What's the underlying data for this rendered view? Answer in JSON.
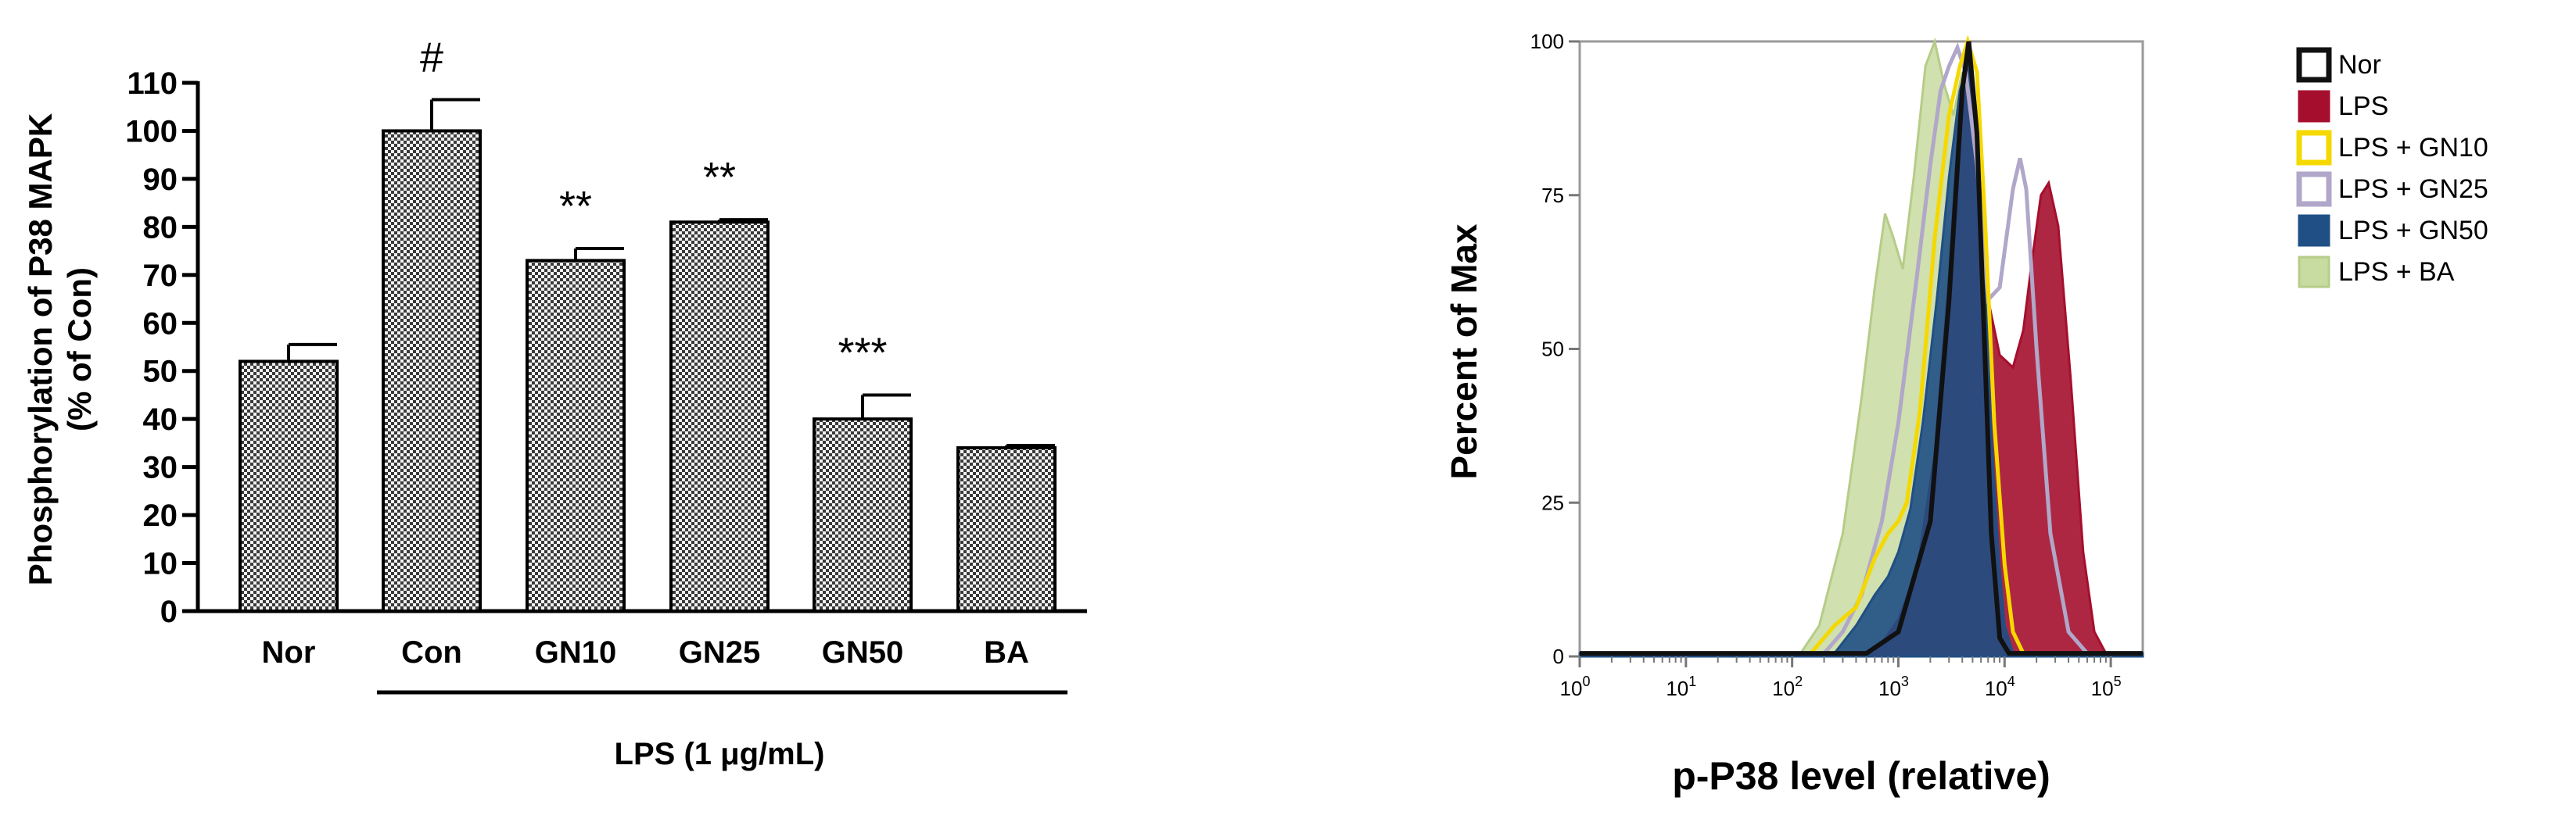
{
  "chart_data": [
    {
      "type": "bar",
      "ylabel": "Phosphorylation of P38 MAPK",
      "ylabel2": "(% of Con)",
      "categories": [
        "Nor",
        "Con",
        "GN10",
        "GN25",
        "GN50",
        "BA"
      ],
      "values": [
        52,
        100,
        73,
        81,
        40,
        34
      ],
      "errors": [
        3.5,
        6.5,
        2.5,
        0.5,
        5,
        0.5
      ],
      "annotations": [
        "",
        "#",
        "**",
        "**",
        "***",
        ""
      ],
      "ylim": [
        0,
        110
      ],
      "yticks": [
        "0",
        "10",
        "20",
        "30",
        "40",
        "50",
        "60",
        "70",
        "80",
        "90",
        "100",
        "110"
      ],
      "group_label": "LPS (1 μg/mL)",
      "bar_fill": "checkered",
      "colors": {
        "bar_light": "#f2f2f2",
        "bar_dark": "#3a3a3a"
      }
    },
    {
      "type": "area",
      "ylabel": "Percent of Max",
      "xlabel": "p-P38 level (relative)",
      "x_scale": "log",
      "xlim": [
        1,
        200000
      ],
      "ylim": [
        0,
        100
      ],
      "yticks": [
        "0",
        "25",
        "50",
        "75",
        "100"
      ],
      "xtick_bases": [
        "10",
        "10",
        "10",
        "10",
        "10",
        "10"
      ],
      "xtick_exps": [
        "0",
        "1",
        "2",
        "3",
        "4",
        "5"
      ],
      "legend_position": "right",
      "series": [
        {
          "name": "Nor",
          "color": "#111111",
          "fill": "none",
          "points": [
            [
              1,
              0.5
            ],
            [
              500,
              0.5
            ],
            [
              1000,
              4
            ],
            [
              2000,
              22
            ],
            [
              3000,
              58
            ],
            [
              4000,
              92
            ],
            [
              4600,
              100
            ],
            [
              5500,
              85
            ],
            [
              6500,
              50
            ],
            [
              7500,
              20
            ],
            [
              9000,
              3
            ],
            [
              11000,
              0.5
            ],
            [
              200000,
              0.5
            ]
          ]
        },
        {
          "name": "LPS",
          "color": "#a50f2d",
          "fill": "#a50f2d",
          "points": [
            [
              1,
              0.5
            ],
            [
              600,
              0.5
            ],
            [
              1000,
              6
            ],
            [
              1500,
              14
            ],
            [
              2200,
              33
            ],
            [
              3000,
              62
            ],
            [
              3800,
              90
            ],
            [
              4500,
              99
            ],
            [
              5500,
              88
            ],
            [
              7000,
              58
            ],
            [
              9000,
              49
            ],
            [
              12000,
              47
            ],
            [
              15000,
              53
            ],
            [
              18000,
              64
            ],
            [
              22000,
              75
            ],
            [
              26000,
              77
            ],
            [
              32000,
              70
            ],
            [
              42000,
              45
            ],
            [
              55000,
              17
            ],
            [
              70000,
              4
            ],
            [
              90000,
              0.5
            ],
            [
              200000,
              0.5
            ]
          ]
        },
        {
          "name": "LPS + GN10",
          "color": "#f5d800",
          "fill": "none",
          "points": [
            [
              1,
              0.5
            ],
            [
              150,
              0.5
            ],
            [
              250,
              5
            ],
            [
              400,
              8
            ],
            [
              600,
              16
            ],
            [
              800,
              20
            ],
            [
              1000,
              22
            ],
            [
              1200,
              25
            ],
            [
              1600,
              40
            ],
            [
              2200,
              68
            ],
            [
              3000,
              88
            ],
            [
              3800,
              96
            ],
            [
              4500,
              100
            ],
            [
              5500,
              95
            ],
            [
              6500,
              72
            ],
            [
              8000,
              38
            ],
            [
              10000,
              15
            ],
            [
              12000,
              4
            ],
            [
              15000,
              0.5
            ],
            [
              200000,
              0.5
            ]
          ]
        },
        {
          "name": "LPS + GN25",
          "color": "#b0a7c9",
          "fill": "none",
          "points": [
            [
              1,
              0.5
            ],
            [
              200,
              0.5
            ],
            [
              300,
              4
            ],
            [
              450,
              10
            ],
            [
              700,
              22
            ],
            [
              1000,
              38
            ],
            [
              1500,
              62
            ],
            [
              2000,
              80
            ],
            [
              2500,
              92
            ],
            [
              3000,
              96
            ],
            [
              3600,
              99
            ],
            [
              4300,
              95
            ],
            [
              5500,
              80
            ],
            [
              7000,
              58
            ],
            [
              9000,
              60
            ],
            [
              12000,
              76
            ],
            [
              14000,
              81
            ],
            [
              16000,
              76
            ],
            [
              20000,
              50
            ],
            [
              27000,
              20
            ],
            [
              40000,
              4
            ],
            [
              60000,
              0.5
            ],
            [
              200000,
              0.5
            ]
          ]
        },
        {
          "name": "LPS + GN50",
          "color": "#1f4f85",
          "fill": "#1f4f85",
          "points": [
            [
              1,
              0.5
            ],
            [
              250,
              0.5
            ],
            [
              400,
              5
            ],
            [
              600,
              10
            ],
            [
              800,
              13
            ],
            [
              1000,
              17
            ],
            [
              1300,
              24
            ],
            [
              1700,
              38
            ],
            [
              2300,
              58
            ],
            [
              3000,
              78
            ],
            [
              3800,
              92
            ],
            [
              4600,
              97
            ],
            [
              5500,
              86
            ],
            [
              6500,
              62
            ],
            [
              7500,
              36
            ],
            [
              8800,
              16
            ],
            [
              10000,
              5
            ],
            [
              12000,
              0.5
            ],
            [
              200000,
              0.5
            ]
          ]
        },
        {
          "name": "LPS + BA",
          "color": "#b6cc88",
          "fill": "#c8dba0",
          "points": [
            [
              1,
              0.5
            ],
            [
              120,
              0.5
            ],
            [
              180,
              5
            ],
            [
              300,
              20
            ],
            [
              450,
              42
            ],
            [
              600,
              60
            ],
            [
              750,
              72
            ],
            [
              900,
              68
            ],
            [
              1100,
              63
            ],
            [
              1400,
              78
            ],
            [
              1800,
              96
            ],
            [
              2200,
              100
            ],
            [
              2700,
              93
            ],
            [
              3300,
              88
            ],
            [
              4000,
              95
            ],
            [
              4800,
              82
            ],
            [
              5500,
              58
            ],
            [
              6500,
              32
            ],
            [
              7800,
              12
            ],
            [
              9500,
              3
            ],
            [
              12000,
              0.5
            ],
            [
              200000,
              0.5
            ]
          ]
        }
      ]
    }
  ]
}
